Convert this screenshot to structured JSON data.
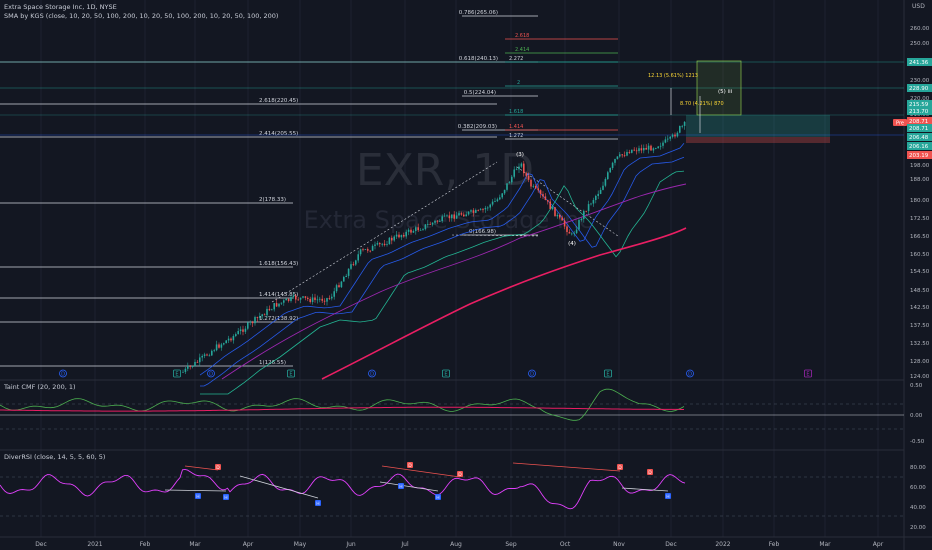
{
  "header": {
    "symbol_line": "Extra Space Storage Inc, 1D, NYSE",
    "sma_line": "SMA by KGS (close, 10, 20, 50, 100, 200, 10, 20, 50, 100, 200, 10, 20, 50, 100, 200)"
  },
  "watermark": {
    "symbol": "EXR, 1D",
    "name": "Extra Space Storage Inc"
  },
  "currency": "USD",
  "colors": {
    "background": "#131722",
    "up": "#26a69a",
    "down": "#ef5350",
    "sma_fast": "#2962ff",
    "sma_mid": "#26c6a0",
    "sma_slow": "#9c27b0",
    "sma_200": "#e91e63",
    "fib_line": "#d1d4dc",
    "cmf": "#4caf50",
    "rsi": "#e040fb",
    "target_box": "#8bc34a"
  },
  "chart_data": [
    {
      "type": "candlestick",
      "title": "Extra Space Storage Inc, 1D, NYSE",
      "x_tick_labels": [
        "Dec",
        "2021",
        "Feb",
        "Mar",
        "Apr",
        "May",
        "Jun",
        "Jul",
        "Aug",
        "Sep",
        "Oct",
        "Nov",
        "Dec",
        "2022",
        "Feb",
        "Mar",
        "Apr"
      ],
      "y_tick_labels": [
        "260.00",
        "250.00",
        "240.00",
        "230.00",
        "220.00",
        "215.00",
        "206.00",
        "198.00",
        "188.00",
        "180.00",
        "172.50",
        "166.50",
        "160.50",
        "154.50",
        "148.50",
        "142.50",
        "137.50",
        "132.50",
        "128.00",
        "124.00"
      ],
      "price_labels": [
        {
          "text": "241.36",
          "color": "#26a69a"
        },
        {
          "text": "228.90",
          "color": "#26a69a"
        },
        {
          "text": "215.59",
          "color": "#26a69a"
        },
        {
          "text": "213.70",
          "color": "#26a69a"
        },
        {
          "text": "208.71",
          "color": "#ef5350"
        },
        {
          "text": "208.71",
          "color": "#26a69a"
        },
        {
          "text": "206.48",
          "color": "#26a69a"
        },
        {
          "text": "206.16",
          "color": "#26a69a"
        },
        {
          "text": "203.19",
          "color": "#ef5350"
        }
      ],
      "pre_label": "Pre",
      "fib_levels": [
        {
          "label": "0.786(265.06)"
        },
        {
          "label": "0.618(240.13)"
        },
        {
          "label": "0.5(224.04)"
        },
        {
          "label": "0.382(209.03)"
        },
        {
          "label": "0(166.98)"
        },
        {
          "label": "2.618(220.45)"
        },
        {
          "label": "2.414(205.55)"
        },
        {
          "label": "2(178.33)"
        },
        {
          "label": "1.618(156.43)"
        },
        {
          "label": "1.414(145.85)"
        },
        {
          "label": "1.272(138.92)"
        },
        {
          "label": "1(126.55)"
        }
      ],
      "ext_ratios": [
        "2.618",
        "2.414",
        "2.272",
        "2",
        "1.618",
        "1.414",
        "1.272"
      ],
      "waves": [
        "(3)",
        "(4)",
        "(5) iii"
      ],
      "measure_labels": [
        "12.13 (5.61%) 1213",
        "8.70 (4.21%) 870"
      ],
      "series": [
        {
          "name": "SMA 10"
        },
        {
          "name": "SMA 20"
        },
        {
          "name": "SMA 50"
        },
        {
          "name": "SMA 100"
        },
        {
          "name": "SMA 200"
        }
      ]
    },
    {
      "type": "line",
      "title": "Taint CMF (20, 200, 1)",
      "y_tick_labels": [
        "0.50",
        "0.00",
        "-0.50"
      ]
    },
    {
      "type": "line",
      "title": "DiverRSI (close, 14, 5, 5, 60, 5)",
      "y_tick_labels": [
        "80.00",
        "60.00",
        "40.00",
        "20.00"
      ],
      "markers": [
        "D",
        "H"
      ]
    }
  ]
}
